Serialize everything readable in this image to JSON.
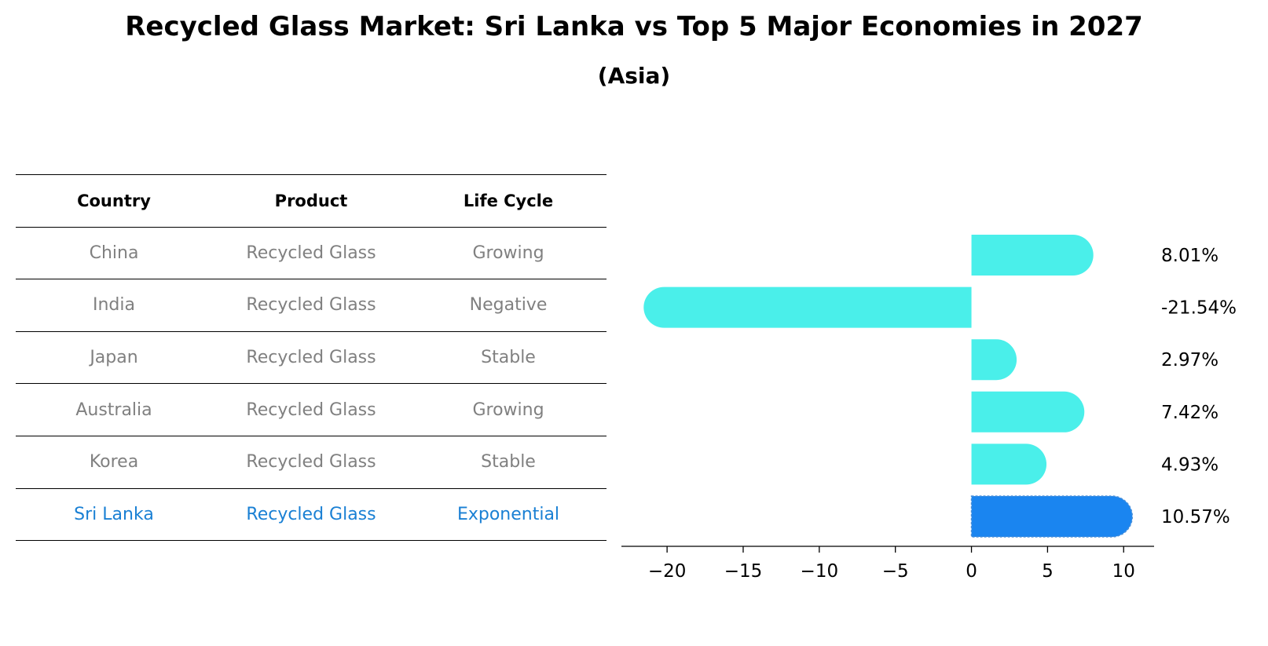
{
  "title": "Recycled Glass Market: Sri Lanka vs Top 5 Major Economies in 2027",
  "subtitle": "(Asia)",
  "colors": {
    "bar": "#4aefea",
    "highlight_bar": "#1a85f0",
    "body_text": "#808080",
    "highlight_text": "#1a80d4"
  },
  "table": {
    "headers": [
      "Country",
      "Product",
      "Life Cycle"
    ],
    "rows": [
      [
        "China",
        "Recycled Glass",
        "Growing"
      ],
      [
        "India",
        "Recycled Glass",
        "Negative"
      ],
      [
        "Japan",
        "Recycled Glass",
        "Stable"
      ],
      [
        "Australia",
        "Recycled Glass",
        "Growing"
      ],
      [
        "Korea",
        "Recycled Glass",
        "Stable"
      ],
      [
        "Sri Lanka",
        "Recycled Glass",
        "Exponential"
      ]
    ]
  },
  "chart_data": {
    "type": "bar",
    "orientation": "horizontal",
    "categories": [
      "China",
      "India",
      "Japan",
      "Australia",
      "Korea",
      "Sri Lanka"
    ],
    "values": [
      8.01,
      -21.54,
      2.97,
      7.42,
      4.93,
      10.57
    ],
    "value_labels": [
      "8.01%",
      "-21.54%",
      "2.97%",
      "7.42%",
      "4.93%",
      "10.57%"
    ],
    "highlight_category": "Sri Lanka",
    "xlim": [
      -23,
      12
    ],
    "xticks": [
      -20,
      -15,
      -10,
      -5,
      0,
      5,
      10
    ],
    "xtick_labels": [
      "−20",
      "−15",
      "−10",
      "−5",
      "0",
      "5",
      "10"
    ],
    "grid": false,
    "title": "",
    "xlabel": "",
    "ylabel": ""
  }
}
